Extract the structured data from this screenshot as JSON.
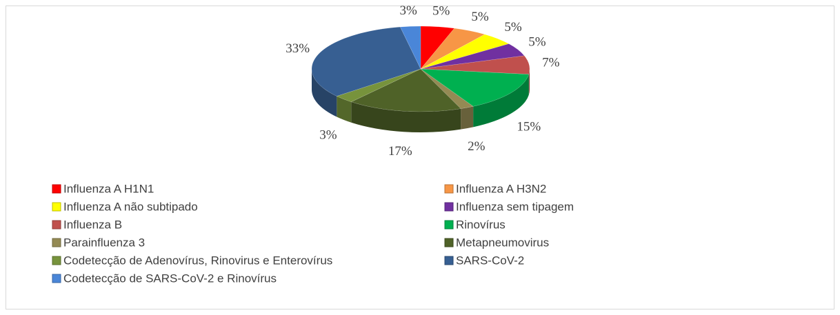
{
  "chart_data": {
    "type": "pie",
    "categories": [
      "Influenza A H1N1",
      "Influenza A H3N2",
      "Influenza A não subtipado",
      "Influenza sem tipagem",
      "Influenza B",
      "Rinovírus",
      "Parainfluenza 3",
      "Metapneumovirus",
      "Codetecção de Adenovírus, Rinovirus e Enterovírus",
      "SARS-CoV-2",
      "Codetecção de SARS-CoV-2 e Rinovírus"
    ],
    "values": [
      5,
      5,
      5,
      5,
      7,
      15,
      2,
      17,
      3,
      33,
      3
    ],
    "value_labels": [
      "5%",
      "5%",
      "5%",
      "5%",
      "7%",
      "15%",
      "2%",
      "17%",
      "3%",
      "33%",
      "3%"
    ],
    "colors": [
      "#ff0000",
      "#f79646",
      "#ffff00",
      "#7030a0",
      "#c0504d",
      "#00b050",
      "#948a54",
      "#4f6228",
      "#77933c",
      "#375f92",
      "#4a86d8"
    ],
    "legend": "bottom"
  }
}
